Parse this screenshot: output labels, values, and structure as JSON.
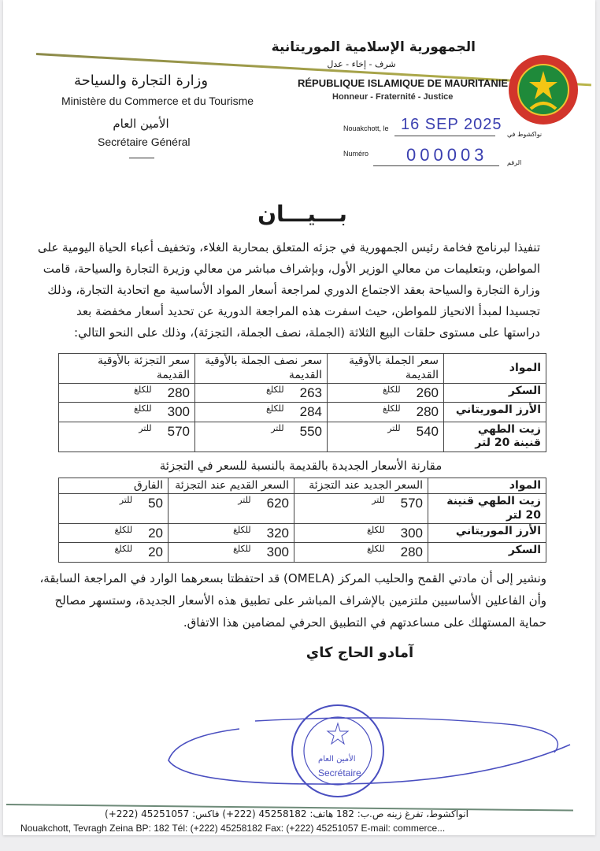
{
  "header": {
    "republic_ar": "الجمهورية الإسلامية الموريتانية",
    "motto_ar": "شرف - إخاء - عدل",
    "republic_fr": "RÉPUBLIQUE ISLAMIQUE DE MAURITANIE",
    "motto_fr": "Honneur - Fraternité - Justice",
    "ministry_ar": "وزارة التجارة والسياحة",
    "ministry_fr": "Ministère du Commerce et du Tourisme",
    "sg_ar": "الأمين العام",
    "sg_fr": "Secrétaire Général",
    "place_label_fr": "Nouakchott, le",
    "place_label_ar": "نواكشوط في",
    "date": "16 SEP 2025",
    "number_label_fr": "Numéro",
    "number_label_ar": "الرقم",
    "number": "000003",
    "emblem_colors": {
      "ring": "#d2352b",
      "field": "#1f8a3a",
      "star": "#f3c614"
    }
  },
  "title": "بـــيـــان",
  "intro_lines": [
    "تنفيذا لبرنامج فخامة رئيس الجمهورية في جزئه المتعلق بمحاربة الغلاء، وتخفيف أعباء الحياة اليومية على",
    "المواطن، وبتعليمات من معالي الوزير الأول، وبإشراف مباشر من معالي وزيرة التجارة والسياحة، قامت",
    "وزارة التجارة والسياحة بعقد الاجتماع الدوري لمراجعة أسعار المواد الأساسية مع اتحادية التجارة، وذلك",
    "تجسيدا لمبدأ الانحياز للمواطن، حيث اسفرت هذه المراجعة الدورية عن تحديد أسعار مخفضة بعد",
    "دراستها على مستوى حلقات البيع الثلاثة (الجملة، نصف الجملة، التجزئة)، وذلك على النحو التالي:"
  ],
  "table1": {
    "headers": [
      "المواد",
      "سعر الجملة بالأوقية القديمة",
      "سعر نصف الجملة بالأوقية القديمة",
      "سعر التجزئة بالأوقية القديمة"
    ],
    "rows": [
      {
        "item": "السكر",
        "wholesale": "260",
        "wholesale_unit": "للكلغ",
        "half": "263",
        "half_unit": "للكلغ",
        "retail": "280",
        "retail_unit": "للكلغ"
      },
      {
        "item": "الأرز الموريتاني",
        "wholesale": "280",
        "wholesale_unit": "للكلغ",
        "half": "284",
        "half_unit": "للكلغ",
        "retail": "300",
        "retail_unit": "للكلغ"
      },
      {
        "item": "زيت الطهي قنينة 20 لتر",
        "wholesale": "540",
        "wholesale_unit": "للتر",
        "half": "550",
        "half_unit": "للتر",
        "retail": "570",
        "retail_unit": "للتر"
      }
    ]
  },
  "table2": {
    "title": "مقارنة الأسعار الجديدة بالقديمة بالنسبة للسعر في التجزئة",
    "headers": [
      "المواد",
      "السعر الجديد عند التجزئة",
      "السعر القديم عند التجزئة",
      "الفارق"
    ],
    "rows": [
      {
        "item": "زيت الطهي قنينة 20 لتر",
        "new": "570",
        "new_unit": "للتر",
        "old": "620",
        "old_unit": "للتر",
        "diff": "50",
        "diff_unit": "للتر"
      },
      {
        "item": "الأرز الموريتاني",
        "new": "300",
        "new_unit": "للكلغ",
        "old": "320",
        "old_unit": "للكلغ",
        "diff": "20",
        "diff_unit": "للكلغ"
      },
      {
        "item": "السكر",
        "new": "280",
        "new_unit": "للكلغ",
        "old": "300",
        "old_unit": "للكلغ",
        "diff": "20",
        "diff_unit": "للكلغ"
      }
    ]
  },
  "closing_lines": [
    "ونشير إلى أن مادتي القمح والحليب المركز (OMELA) قد احتفظتا بسعرهما الوارد في المراجعة السابقة،",
    "وأن الفاعلين الأساسيين ملتزمين بالإشراف المباشر على تطبيق هذه الأسعار الجديدة، وستسهر مصالح",
    "حماية المستهلك على مساعدتهم في التطبيق الحرفي لمضامين هذا الاتفاق."
  ],
  "signatory": "آمادو الحاج كاي",
  "stamp": {
    "text_ar": "الأمين العام",
    "text_fr": "Secrétaire",
    "color": "#4a4fc0"
  },
  "footer": {
    "line_ar": "انواكشوط، تفرغ زينه ص.ب: 182 هاتف: 45258182 (222+) فاكس: 45251057 (222+)",
    "line_fr": "Nouakchott, Tevragh Zeina BP: 182 Tél: (+222) 45258182 Fax: (+222) 45251057 E-mail: commerce..."
  }
}
